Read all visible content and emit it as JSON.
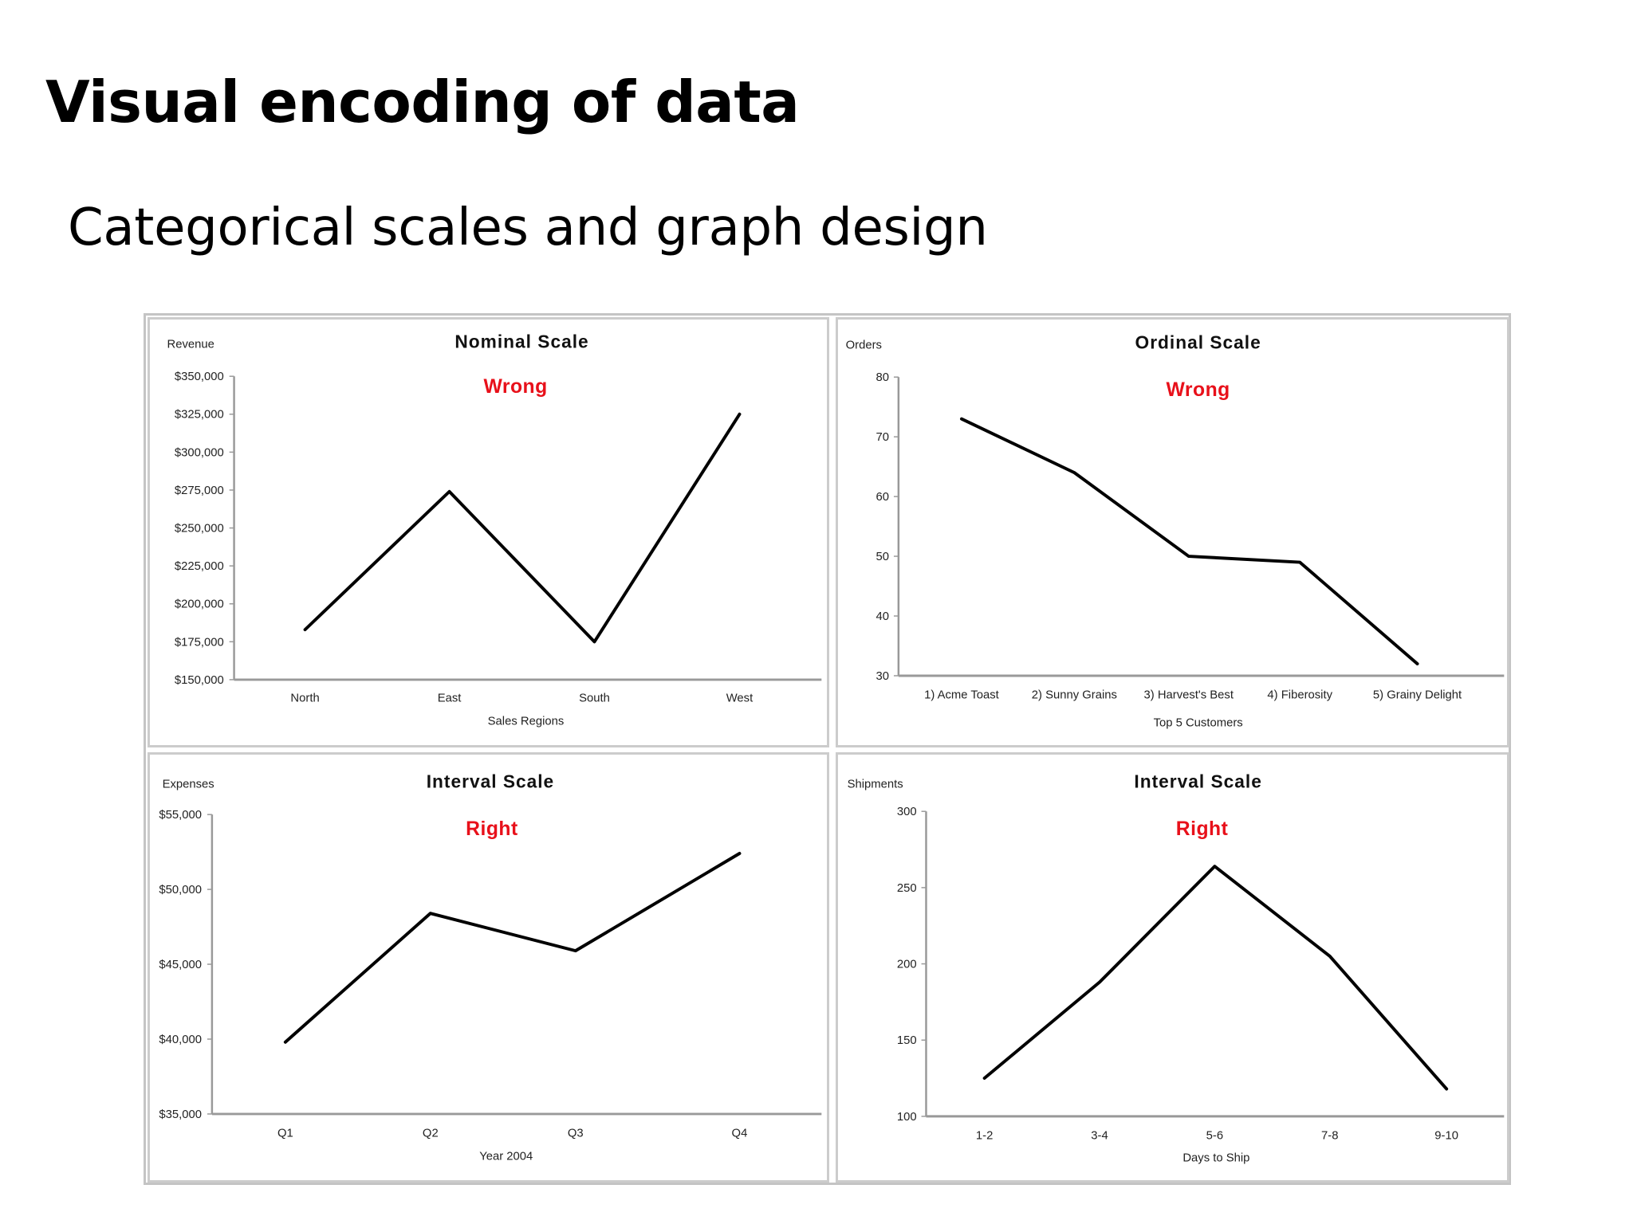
{
  "slide": {
    "title": "Visual encoding of data",
    "subtitle": "Categorical scales and graph design"
  },
  "colors": {
    "line": "#000000",
    "axis": "#999999",
    "verdict": "#e8101a"
  },
  "chart_data": [
    {
      "type": "line",
      "title": "Nominal Scale",
      "annotation": "Wrong",
      "ylabel": "Revenue",
      "xlabel": "Sales Regions",
      "categories": [
        "North",
        "East",
        "South",
        "West"
      ],
      "values": [
        183000,
        274000,
        175000,
        325000
      ],
      "ylim": [
        150000,
        350000
      ],
      "yticks": [
        150000,
        175000,
        200000,
        225000,
        250000,
        275000,
        300000,
        325000,
        350000
      ],
      "ytick_labels": [
        "$150,000",
        "$175,000",
        "$200,000",
        "$225,000",
        "$250,000",
        "$275,000",
        "$300,000",
        "$325,000",
        "$350,000"
      ],
      "grid": false
    },
    {
      "type": "line",
      "title": "Ordinal Scale",
      "annotation": "Wrong",
      "ylabel": "Orders",
      "xlabel": "Top 5 Customers",
      "categories": [
        "1) Acme Toast",
        "2) Sunny Grains",
        "3) Harvest's Best",
        "4) Fiberosity",
        "5) Grainy Delight"
      ],
      "values": [
        73,
        64,
        50,
        49,
        32
      ],
      "ylim": [
        30,
        80
      ],
      "yticks": [
        30,
        40,
        50,
        60,
        70,
        80
      ],
      "ytick_labels": [
        "30",
        "40",
        "50",
        "60",
        "70",
        "80"
      ],
      "grid": false
    },
    {
      "type": "line",
      "title": "Interval Scale",
      "annotation": "Right",
      "ylabel": "Expenses",
      "xlabel": "Year 2004",
      "categories": [
        "Q1",
        "Q2",
        "Q3",
        "Q4"
      ],
      "values": [
        39800,
        48400,
        45900,
        52400
      ],
      "ylim": [
        35000,
        55000
      ],
      "yticks": [
        35000,
        40000,
        45000,
        50000,
        55000
      ],
      "ytick_labels": [
        "$35,000",
        "$40,000",
        "$45,000",
        "$50,000",
        "$55,000"
      ],
      "grid": false
    },
    {
      "type": "line",
      "title": "Interval Scale",
      "annotation": "Right",
      "ylabel": "Shipments",
      "xlabel": "Days to Ship",
      "categories": [
        "1-2",
        "3-4",
        "5-6",
        "7-8",
        "9-10"
      ],
      "values": [
        125,
        188,
        264,
        205,
        118
      ],
      "ylim": [
        100,
        300
      ],
      "yticks": [
        100,
        150,
        200,
        250,
        300
      ],
      "ytick_labels": [
        "100",
        "150",
        "200",
        "250",
        "300"
      ],
      "grid": false
    }
  ]
}
